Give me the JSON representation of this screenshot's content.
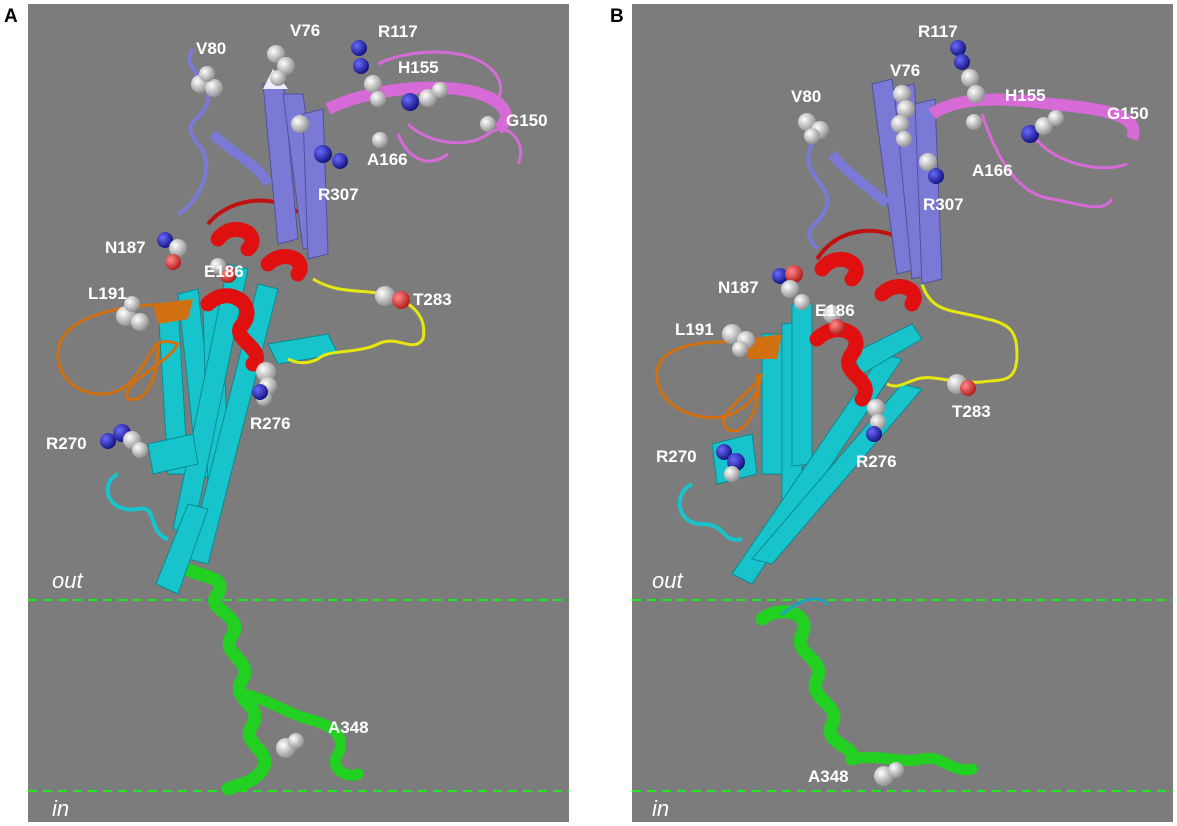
{
  "panels": [
    {
      "letter": "A",
      "membrane": {
        "out": "out",
        "in": "in"
      },
      "residues": {
        "V80": "V80",
        "V76": "V76",
        "R117": "R117",
        "H155": "H155",
        "G150": "G150",
        "A166": "A166",
        "R307": "R307",
        "N187": "N187",
        "E186": "E186",
        "T283": "T283",
        "L191": "L191",
        "R270": "R270",
        "R276": "R276",
        "A348": "A348"
      }
    },
    {
      "letter": "B",
      "membrane": {
        "out": "out",
        "in": "in"
      },
      "residues": {
        "R117": "R117",
        "V80": "V80",
        "V76": "V76",
        "H155": "H155",
        "G150": "G150",
        "A166": "A166",
        "R307": "R307",
        "N187": "N187",
        "E186": "E186",
        "L191": "L191",
        "T283": "T283",
        "R270": "R270",
        "R276": "R276",
        "A348": "A348"
      }
    }
  ],
  "colors": {
    "background": "#7c7c7c",
    "domain_periplasmic": "#7a7ad6",
    "domain_pink": "#d66ad6",
    "domain_cyan": "#18c4cc",
    "helix_red": "#e01010",
    "loop_orange": "#d07010",
    "loop_yellow": "#e6e610",
    "transmembrane_green": "#22d022",
    "membrane_line": "#22e622"
  }
}
